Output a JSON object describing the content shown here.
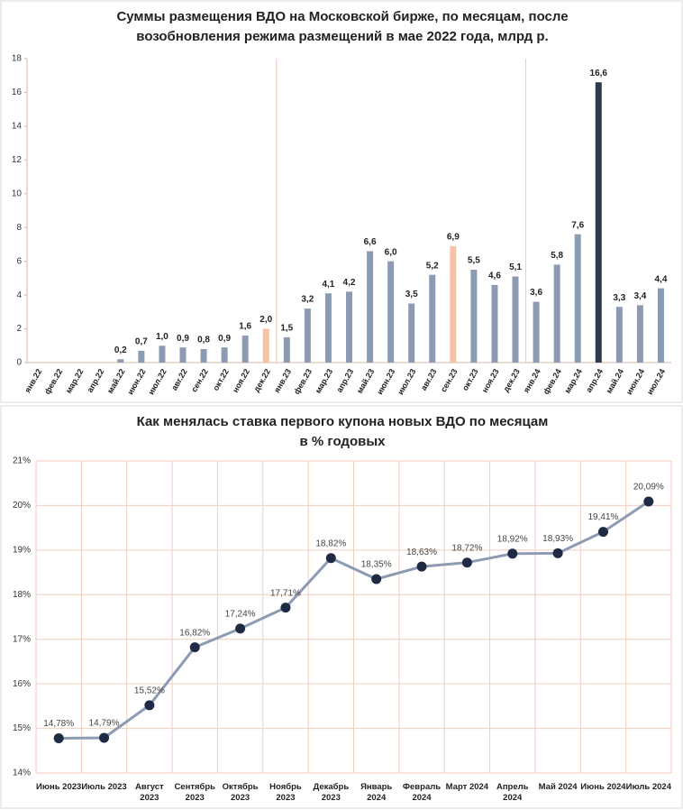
{
  "chart_data": [
    {
      "type": "bar",
      "title": "Суммы размещения ВДО на Московской бирже, по месяцам, после возобновления режима размещений в мае 2022 года, млрд р.",
      "categories": [
        "янв.22",
        "фев.22",
        "мар.22",
        "апр.22",
        "май.22",
        "июн.22",
        "июл.22",
        "авг.22",
        "сен.22",
        "окт.22",
        "ноя.22",
        "дек.22",
        "янв.23",
        "фев.23",
        "мар.23",
        "апр.23",
        "май.23",
        "июн.23",
        "июл.23",
        "авг.23",
        "сен.23",
        "окт.23",
        "ноя.23",
        "дек.23",
        "янв.24",
        "фев.24",
        "мар.24",
        "апр.24",
        "май.24",
        "июн.24",
        "июл.24"
      ],
      "values": [
        null,
        null,
        null,
        null,
        0.2,
        0.7,
        1.0,
        0.9,
        0.8,
        0.9,
        1.6,
        2.0,
        1.5,
        3.2,
        4.1,
        4.2,
        6.6,
        6.0,
        3.5,
        5.2,
        6.9,
        5.5,
        4.6,
        5.1,
        3.6,
        5.8,
        7.6,
        16.6,
        3.3,
        3.4,
        4.4
      ],
      "value_labels": [
        null,
        null,
        null,
        null,
        "0,2",
        "0,7",
        "1,0",
        "0,9",
        "0,8",
        "0,9",
        "1,6",
        "2,0",
        "1,5",
        "3,2",
        "4,1",
        "4,2",
        "6,6",
        "6,0",
        "3,5",
        "5,2",
        "6,9",
        "5,5",
        "4,6",
        "5,1",
        "3,6",
        "5,8",
        "7,6",
        "16,6",
        "3,3",
        "3,4",
        "4,4"
      ],
      "colors": [
        "#8d9bb2",
        "#8d9bb2",
        "#8d9bb2",
        "#8d9bb2",
        "#8d9bb2",
        "#8d9bb2",
        "#8d9bb2",
        "#8d9bb2",
        "#8d9bb2",
        "#8d9bb2",
        "#8d9bb2",
        "#f4c3a5",
        "#8d9bb2",
        "#8d9bb2",
        "#8d9bb2",
        "#8d9bb2",
        "#8d9bb2",
        "#8d9bb2",
        "#8d9bb2",
        "#8d9bb2",
        "#f4c3a5",
        "#8d9bb2",
        "#8d9bb2",
        "#8d9bb2",
        "#8d9bb2",
        "#8d9bb2",
        "#8d9bb2",
        "#2e3a4d",
        "#8d9bb2",
        "#8d9bb2",
        "#8d9bb2"
      ],
      "ylim": [
        0,
        18
      ],
      "yticks": [
        0,
        2,
        4,
        6,
        8,
        10,
        12,
        14,
        16,
        18
      ]
    },
    {
      "type": "line",
      "title": "Как менялась ставка первого купона новых ВДО по месяцам в % годовых",
      "categories": [
        "Июнь 2023",
        "Июль 2023",
        "Август 2023",
        "Сентябрь 2023",
        "Октябрь 2023",
        "Ноябрь 2023",
        "Декабрь 2023",
        "Январь 2024",
        "Февраль 2024",
        "Март 2024",
        "Апрель 2024",
        "Май 2024",
        "Июнь 2024",
        "Июль 2024"
      ],
      "values": [
        14.78,
        14.79,
        15.52,
        16.82,
        17.24,
        17.71,
        18.82,
        18.35,
        18.63,
        18.72,
        18.92,
        18.93,
        19.41,
        20.09
      ],
      "value_labels": [
        "14,78%",
        "14,79%",
        "15,52%",
        "16,82%",
        "17,24%",
        "17,71%",
        "18,82%",
        "18,35%",
        "18,63%",
        "18,72%",
        "18,92%",
        "18,93%",
        "19,41%",
        "20,09%"
      ],
      "color": "#8d9bb2",
      "marker_color": "#1f2b45",
      "ylim": [
        14,
        21
      ],
      "yticks": [
        {
          "value": 14,
          "label": "14%"
        },
        {
          "value": 15,
          "label": "15%"
        },
        {
          "value": 16,
          "label": "16%"
        },
        {
          "value": 17,
          "label": "17%"
        },
        {
          "value": 18,
          "label": "18%"
        },
        {
          "value": 19,
          "label": "19%"
        },
        {
          "value": 20,
          "label": "20%"
        },
        {
          "value": 21,
          "label": "21%"
        }
      ],
      "grid": true
    }
  ]
}
